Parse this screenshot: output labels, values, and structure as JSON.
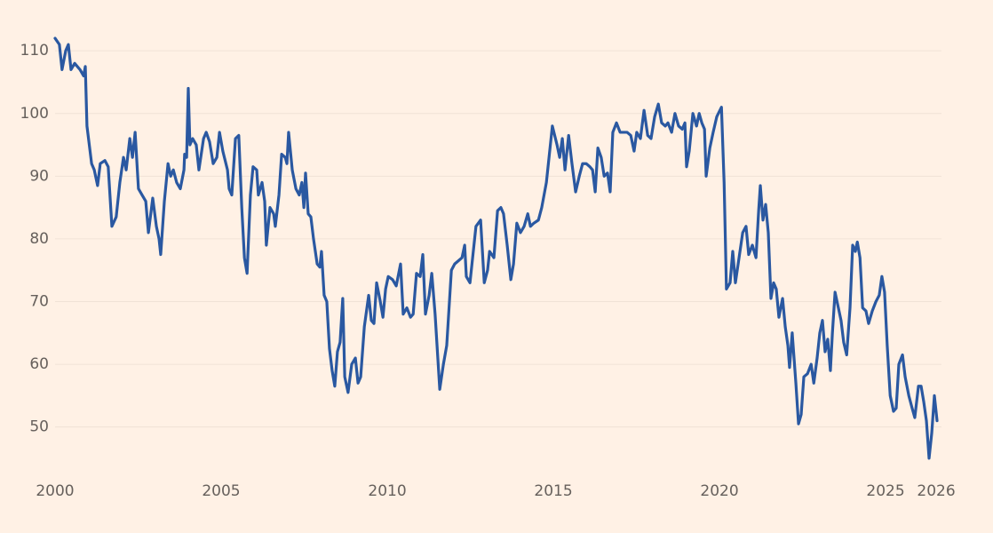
{
  "chart_data": {
    "type": "line",
    "color": "#2a58a1",
    "grid": true,
    "x": [
      2000.0,
      2000.13,
      2000.21,
      2000.32,
      2000.4,
      2000.48,
      2000.59,
      2000.75,
      2000.86,
      2000.91,
      2000.96,
      2001.1,
      2001.18,
      2001.28,
      2001.36,
      2001.5,
      2001.6,
      2001.71,
      2001.84,
      2001.95,
      2002.06,
      2002.14,
      2002.25,
      2002.33,
      2002.41,
      2002.51,
      2002.62,
      2002.73,
      2002.81,
      2002.94,
      2003.05,
      2003.13,
      2003.18,
      2003.29,
      2003.4,
      2003.48,
      2003.56,
      2003.66,
      2003.77,
      2003.88,
      2003.9,
      2003.96,
      2004.01,
      2004.06,
      2004.14,
      2004.25,
      2004.33,
      2004.47,
      2004.55,
      2004.65,
      2004.76,
      2004.87,
      2004.95,
      2005.05,
      2005.19,
      2005.24,
      2005.32,
      2005.43,
      2005.53,
      2005.62,
      2005.7,
      2005.78,
      2005.88,
      2005.96,
      2006.07,
      2006.12,
      2006.23,
      2006.31,
      2006.36,
      2006.47,
      2006.58,
      2006.63,
      2006.74,
      2006.82,
      2006.93,
      2006.98,
      2007.03,
      2007.14,
      2007.25,
      2007.35,
      2007.43,
      2007.49,
      2007.54,
      2007.62,
      2007.7,
      2007.78,
      2007.89,
      2007.97,
      2008.02,
      2008.1,
      2008.18,
      2008.26,
      2008.34,
      2008.42,
      2008.5,
      2008.58,
      2008.66,
      2008.72,
      2008.82,
      2008.93,
      2009.04,
      2009.12,
      2009.2,
      2009.31,
      2009.44,
      2009.52,
      2009.6,
      2009.68,
      2009.79,
      2009.87,
      2009.95,
      2010.03,
      2010.16,
      2010.27,
      2010.4,
      2010.48,
      2010.59,
      2010.7,
      2010.78,
      2010.88,
      2010.99,
      2011.07,
      2011.15,
      2011.26,
      2011.34,
      2011.44,
      2011.58,
      2011.69,
      2011.79,
      2011.93,
      2012.03,
      2012.14,
      2012.25,
      2012.33,
      2012.38,
      2012.49,
      2012.57,
      2012.67,
      2012.81,
      2012.92,
      2013.02,
      2013.08,
      2013.21,
      2013.32,
      2013.42,
      2013.5,
      2013.61,
      2013.72,
      2013.8,
      2013.9,
      2014.01,
      2014.12,
      2014.23,
      2014.31,
      2014.41,
      2014.55,
      2014.65,
      2014.79,
      2014.87,
      2014.97,
      2015.11,
      2015.19,
      2015.27,
      2015.35,
      2015.46,
      2015.56,
      2015.67,
      2015.78,
      2015.88,
      2015.99,
      2016.1,
      2016.18,
      2016.26,
      2016.34,
      2016.44,
      2016.53,
      2016.63,
      2016.71,
      2016.79,
      2016.9,
      2017.01,
      2017.11,
      2017.22,
      2017.33,
      2017.43,
      2017.51,
      2017.62,
      2017.73,
      2017.84,
      2017.94,
      2018.05,
      2018.16,
      2018.26,
      2018.37,
      2018.45,
      2018.56,
      2018.66,
      2018.77,
      2018.88,
      2018.96,
      2019.01,
      2019.09,
      2019.2,
      2019.31,
      2019.39,
      2019.47,
      2019.55,
      2019.6,
      2019.71,
      2019.81,
      2019.92,
      2020.06,
      2020.14,
      2020.21,
      2020.32,
      2020.4,
      2020.48,
      2020.59,
      2020.7,
      2020.8,
      2020.88,
      2020.99,
      2021.1,
      2021.18,
      2021.23,
      2021.31,
      2021.39,
      2021.47,
      2021.55,
      2021.63,
      2021.71,
      2021.79,
      2021.9,
      2021.98,
      2022.06,
      2022.11,
      2022.19,
      2022.3,
      2022.38,
      2022.46,
      2022.54,
      2022.65,
      2022.76,
      2022.84,
      2022.94,
      2023.02,
      2023.1,
      2023.18,
      2023.26,
      2023.34,
      2023.4,
      2023.48,
      2023.58,
      2023.66,
      2023.74,
      2023.83,
      2023.93,
      2024.01,
      2024.09,
      2024.15,
      2024.23,
      2024.31,
      2024.41,
      2024.49,
      2024.6,
      2024.71,
      2024.81,
      2024.89,
      2024.97,
      2025.05,
      2025.14,
      2025.24,
      2025.32,
      2025.4,
      2025.51,
      2025.59,
      2025.7,
      2025.8,
      2025.88,
      2025.99,
      2026.07,
      2026.15,
      2026.23,
      2026.31,
      2026.39,
      2026.47,
      2026.55
    ],
    "values": [
      112,
      111,
      107,
      110,
      111,
      107,
      108,
      107,
      106,
      107.5,
      98,
      92,
      91,
      88.5,
      92,
      92.5,
      91.5,
      82,
      83.5,
      89,
      93,
      91,
      96,
      93,
      97,
      88,
      87,
      86,
      81,
      86.5,
      82,
      80,
      77.5,
      86,
      92,
      90,
      91,
      89,
      88,
      91,
      93.5,
      93,
      104,
      95,
      96,
      95,
      91,
      96,
      97,
      95.5,
      92,
      93,
      97,
      94,
      91,
      88,
      87,
      96,
      96.5,
      85,
      77,
      74.5,
      87,
      91.5,
      91,
      87,
      89,
      86,
      79,
      85,
      84,
      82,
      87,
      93.5,
      93,
      92,
      97,
      91,
      88,
      87,
      89,
      85,
      90.5,
      84,
      83.5,
      80,
      76,
      75.5,
      78,
      71,
      70,
      62.5,
      59,
      56.5,
      62,
      63.5,
      70.5,
      58,
      55.5,
      60,
      61,
      57,
      58,
      66,
      71,
      67,
      66.5,
      73,
      70,
      67.5,
      72,
      74,
      73.5,
      72.5,
      76,
      68,
      69,
      67.5,
      68,
      74.5,
      74,
      77.5,
      68,
      71,
      74.5,
      68,
      56,
      60,
      63,
      75,
      76,
      76.5,
      77,
      79,
      74,
      73,
      77,
      82,
      83,
      73,
      75,
      78,
      77,
      84.5,
      85,
      84,
      79,
      73.5,
      76,
      82.5,
      81,
      82,
      84,
      82,
      82.5,
      83,
      85,
      89,
      93,
      98,
      95,
      93,
      96,
      91,
      96.5,
      92,
      87.5,
      90,
      92,
      92,
      91.5,
      91,
      87.5,
      94.5,
      93,
      90,
      90.5,
      87.5,
      97,
      98.5,
      97,
      97,
      97,
      96.5,
      94,
      97,
      96,
      100.5,
      96.5,
      96,
      99.5,
      101.5,
      98.5,
      98,
      98.5,
      97,
      100,
      98,
      97.5,
      98.5,
      91.5,
      94,
      100,
      98,
      100,
      98.5,
      97.5,
      90,
      94.5,
      97,
      99.5,
      101,
      89,
      72,
      73,
      78,
      73,
      77,
      81,
      82,
      77.5,
      79,
      77,
      84.5,
      88.5,
      83,
      85.5,
      81,
      70.5,
      73,
      72,
      67.5,
      70.5,
      66,
      63,
      59.5,
      65,
      57,
      50.5,
      52,
      58,
      58.5,
      60,
      57,
      61,
      65,
      67,
      62,
      64,
      59,
      65,
      71.5,
      69,
      67,
      63.5,
      61.5,
      69,
      79,
      78,
      79.5,
      77,
      69,
      68.5,
      66.5,
      68.5,
      70,
      71,
      74,
      71.5,
      63,
      55,
      52.5,
      53,
      60,
      61.5,
      58,
      55,
      53,
      51.5,
      56.5,
      56.5,
      54,
      51,
      45,
      49,
      55,
      51
    ],
    "xlim": [
      2000,
      2026.55
    ],
    "xticks": [
      2000,
      2005,
      2010,
      2015,
      2020,
      2025,
      2026
    ],
    "ylim": [
      44,
      113
    ],
    "yticks": [
      50,
      60,
      70,
      80,
      90,
      100,
      110
    ]
  }
}
